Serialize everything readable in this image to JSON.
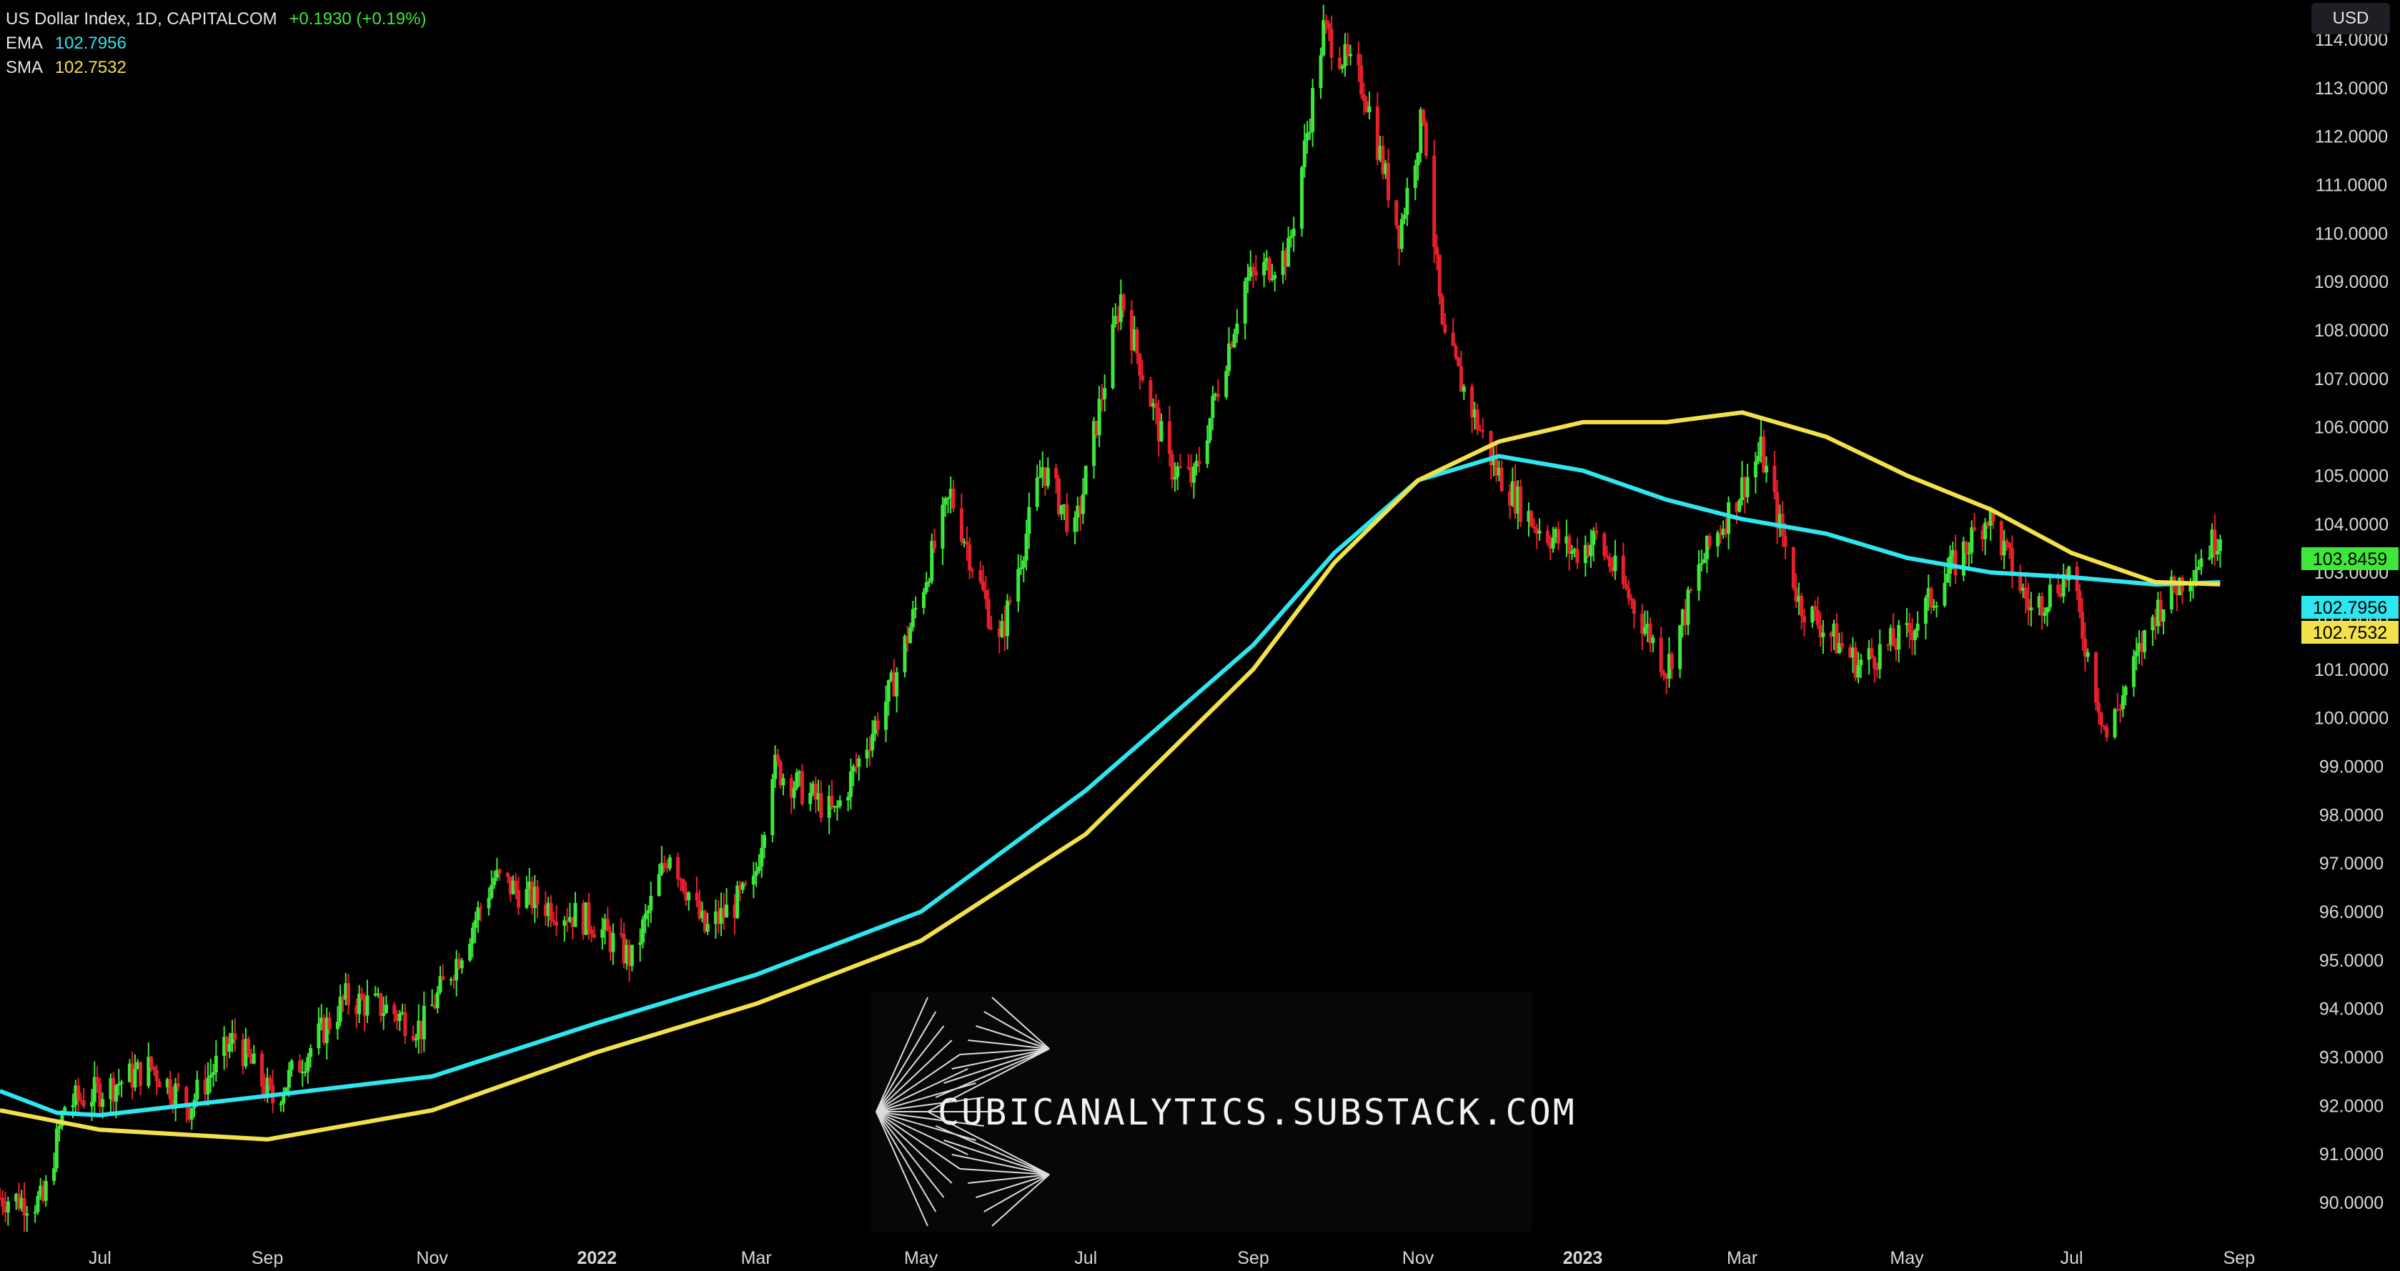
{
  "header": {
    "symbol": "US Dollar Index, 1D, CAPITALCOM",
    "change": "+0.1930 (+0.19%)",
    "ema_label": "EMA",
    "ema_value": "102.7956",
    "sma_label": "SMA",
    "sma_value": "102.7532",
    "currency_button": "USD"
  },
  "watermark": {
    "text": "CUBICANALYTICS.SUBSTACK.COM"
  },
  "colors": {
    "background": "#000000",
    "up": "#3ee83a",
    "down": "#e8202c",
    "ema": "#2ee6f0",
    "sma": "#f2e14a",
    "change": "#3ee83a"
  },
  "price_tags": [
    {
      "label": "103.8459",
      "value": 103.8459,
      "color": "#3ee83a"
    },
    {
      "label": "102.7956",
      "value": 102.7956,
      "color": "#2ee6f0"
    },
    {
      "label": "102.7532",
      "value": 102.7532,
      "color": "#f2e14a"
    }
  ],
  "chart_data": {
    "type": "line",
    "title": "US Dollar Index, 1D, CAPITALCOM",
    "ylim": [
      89.4,
      114.6
    ],
    "y_ticks": [
      "90.0000",
      "91.0000",
      "92.0000",
      "93.0000",
      "94.0000",
      "95.0000",
      "96.0000",
      "97.0000",
      "98.0000",
      "99.0000",
      "100.0000",
      "101.0000",
      "102.0000",
      "103.0000",
      "104.0000",
      "105.0000",
      "106.0000",
      "107.0000",
      "108.0000",
      "109.0000",
      "110.0000",
      "111.0000",
      "112.0000",
      "113.0000",
      "114.0000"
    ],
    "x_ticks": [
      "Jul",
      "Sep",
      "Nov",
      "2022",
      "Mar",
      "May",
      "Jul",
      "Sep",
      "Nov",
      "2023",
      "Mar",
      "May",
      "Jul",
      "Sep"
    ],
    "x_tick_bold": [
      "2022",
      "2023"
    ],
    "grid": false,
    "legend": "top-left",
    "price_path": [
      [
        "2021-05-25",
        90.1
      ],
      [
        "2021-06-10",
        90.0
      ],
      [
        "2021-06-18",
        92.0
      ],
      [
        "2021-07-05",
        92.4
      ],
      [
        "2021-07-20",
        92.8
      ],
      [
        "2021-08-03",
        92.0
      ],
      [
        "2021-08-20",
        93.4
      ],
      [
        "2021-09-03",
        92.1
      ],
      [
        "2021-09-30",
        94.2
      ],
      [
        "2021-10-15",
        94.0
      ],
      [
        "2021-10-28",
        93.6
      ],
      [
        "2021-11-10",
        95.0
      ],
      [
        "2021-11-24",
        96.7
      ],
      [
        "2021-12-10",
        96.2
      ],
      [
        "2021-12-30",
        95.8
      ],
      [
        "2022-01-14",
        95.0
      ],
      [
        "2022-01-28",
        97.3
      ],
      [
        "2022-02-10",
        95.6
      ],
      [
        "2022-02-28",
        96.5
      ],
      [
        "2022-03-07",
        99.0
      ],
      [
        "2022-03-30",
        98.0
      ],
      [
        "2022-04-20",
        100.6
      ],
      [
        "2022-05-12",
        104.6
      ],
      [
        "2022-05-30",
        101.5
      ],
      [
        "2022-06-15",
        105.2
      ],
      [
        "2022-06-27",
        103.8
      ],
      [
        "2022-07-14",
        108.7
      ],
      [
        "2022-08-01",
        105.2
      ],
      [
        "2022-08-10",
        104.9
      ],
      [
        "2022-08-29",
        109.0
      ],
      [
        "2022-09-14",
        109.6
      ],
      [
        "2022-09-27",
        114.2
      ],
      [
        "2022-10-12",
        113.0
      ],
      [
        "2022-10-25",
        110.0
      ],
      [
        "2022-11-03",
        112.5
      ],
      [
        "2022-11-10",
        107.9
      ],
      [
        "2022-11-30",
        105.1
      ],
      [
        "2022-12-14",
        104.0
      ],
      [
        "2022-12-29",
        103.4
      ],
      [
        "2023-01-06",
        103.7
      ],
      [
        "2023-01-26",
        101.7
      ],
      [
        "2023-02-01",
        101.0
      ],
      [
        "2023-02-14",
        103.2
      ],
      [
        "2023-03-08",
        105.5
      ],
      [
        "2023-03-22",
        102.4
      ],
      [
        "2023-04-13",
        101.1
      ],
      [
        "2023-05-01",
        101.7
      ],
      [
        "2023-05-31",
        104.2
      ],
      [
        "2023-06-16",
        102.2
      ],
      [
        "2023-06-30",
        103.0
      ],
      [
        "2023-07-14",
        99.6
      ],
      [
        "2023-08-01",
        102.2
      ],
      [
        "2023-08-22",
        103.6
      ],
      [
        "2023-08-25",
        103.8459
      ]
    ],
    "series": [
      {
        "name": "EMA",
        "value_label": "102.7956",
        "points": [
          [
            "2021-05-25",
            92.3
          ],
          [
            "2021-06-15",
            91.85
          ],
          [
            "2021-07-01",
            91.8
          ],
          [
            "2021-09-01",
            92.2
          ],
          [
            "2021-11-01",
            92.6
          ],
          [
            "2022-01-01",
            93.7
          ],
          [
            "2022-03-01",
            94.7
          ],
          [
            "2022-05-01",
            96.0
          ],
          [
            "2022-07-01",
            98.5
          ],
          [
            "2022-08-01",
            100.0
          ],
          [
            "2022-09-01",
            101.5
          ],
          [
            "2022-10-01",
            103.4
          ],
          [
            "2022-11-01",
            104.9
          ],
          [
            "2022-12-01",
            105.4
          ],
          [
            "2023-01-01",
            105.1
          ],
          [
            "2023-02-01",
            104.5
          ],
          [
            "2023-03-01",
            104.1
          ],
          [
            "2023-04-01",
            103.8
          ],
          [
            "2023-05-01",
            103.3
          ],
          [
            "2023-06-01",
            103.0
          ],
          [
            "2023-07-01",
            102.9
          ],
          [
            "2023-08-01",
            102.75
          ],
          [
            "2023-08-25",
            102.7956
          ]
        ]
      },
      {
        "name": "SMA",
        "value_label": "102.7532",
        "points": [
          [
            "2021-05-25",
            91.9
          ],
          [
            "2021-07-01",
            91.5
          ],
          [
            "2021-09-01",
            91.3
          ],
          [
            "2021-11-01",
            91.9
          ],
          [
            "2022-01-01",
            93.1
          ],
          [
            "2022-03-01",
            94.1
          ],
          [
            "2022-05-01",
            95.4
          ],
          [
            "2022-07-01",
            97.6
          ],
          [
            "2022-08-01",
            99.3
          ],
          [
            "2022-09-01",
            101.0
          ],
          [
            "2022-10-01",
            103.2
          ],
          [
            "2022-11-01",
            104.9
          ],
          [
            "2022-12-01",
            105.7
          ],
          [
            "2023-01-01",
            106.1
          ],
          [
            "2023-02-01",
            106.1
          ],
          [
            "2023-03-01",
            106.3
          ],
          [
            "2023-04-01",
            105.8
          ],
          [
            "2023-05-01",
            105.0
          ],
          [
            "2023-06-01",
            104.3
          ],
          [
            "2023-07-01",
            103.4
          ],
          [
            "2023-08-01",
            102.8
          ],
          [
            "2023-08-25",
            102.7532
          ]
        ]
      }
    ]
  }
}
